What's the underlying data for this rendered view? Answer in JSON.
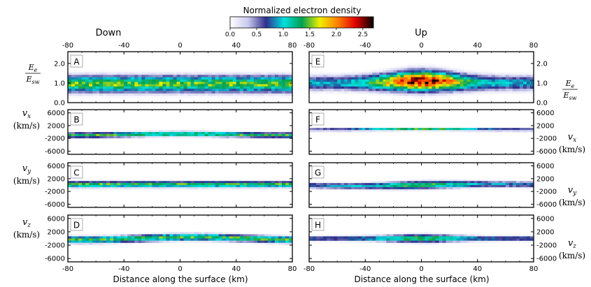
{
  "colorbar": {
    "title": "Normalized electron density",
    "ticks": [
      "0.0",
      "0.5",
      "1.0",
      "1.5",
      "2.0",
      "2.5"
    ],
    "range": [
      0,
      2.7
    ],
    "colors": [
      "#ffffff",
      "#c9c9ee",
      "#2f2f8c",
      "#00e0e0",
      "#00a050",
      "#f0f000",
      "#ff8000",
      "#e00000",
      "#000000"
    ]
  },
  "columns": [
    {
      "title": "Down",
      "xlabel": "Distance along the surface (km)"
    },
    {
      "title": "Up",
      "xlabel": "Distance along the surface (km)"
    }
  ],
  "x_ticks": [
    "-80",
    "-40",
    "0",
    "40",
    "80"
  ],
  "rows": [
    {
      "ylabel": "E_e / E_sw",
      "ylabel_num": "E",
      "ylabel_num_sub": "e",
      "ylabel_den": "E",
      "ylabel_den_sub": "sw",
      "ticks": [
        "0.0",
        "1.0",
        "2.0"
      ],
      "ticks_right": [
        "0.0",
        "1.0",
        "2.0"
      ]
    },
    {
      "ylabel": "v_x (km/s)",
      "ylabel_var": "v",
      "ylabel_sub": "x",
      "ylabel_unit": "(km/s)",
      "ticks": [
        "6000",
        "2000",
        "-2000",
        "-6000"
      ]
    },
    {
      "ylabel": "v_y (km/s)",
      "ylabel_var": "v",
      "ylabel_sub": "y",
      "ylabel_unit": "(km/s)",
      "ticks": [
        "6000",
        "2000",
        "-2000",
        "-6000"
      ]
    },
    {
      "ylabel": "v_z (km/s)",
      "ylabel_var": "v",
      "ylabel_sub": "z",
      "ylabel_unit": "(km/s)",
      "ticks": [
        "6000",
        "2000",
        "-2000",
        "-6000"
      ]
    }
  ],
  "chart_data": [
    {
      "panel": "A",
      "type": "heatmap",
      "column": "Down",
      "x_range": [
        -80,
        80
      ],
      "y_range": [
        0,
        2.6
      ],
      "ridge_y": 0.9,
      "peak_density": 1.6
    },
    {
      "panel": "B",
      "type": "heatmap",
      "column": "Down",
      "x_range": [
        -80,
        80
      ],
      "y_range": [
        -7000,
        7000
      ],
      "ridge_y": -500,
      "peak_density": 1.5
    },
    {
      "panel": "C",
      "type": "heatmap",
      "column": "Down",
      "x_range": [
        -80,
        80
      ],
      "y_range": [
        -7000,
        7000
      ],
      "ridge_y": 0,
      "peak_density": 1.5
    },
    {
      "panel": "D",
      "type": "heatmap",
      "column": "Down",
      "x_range": [
        -80,
        80
      ],
      "y_range": [
        -7000,
        7000
      ],
      "ridge_y": -500,
      "peak_density": 1.5
    },
    {
      "panel": "E",
      "type": "heatmap",
      "column": "Up",
      "x_range": [
        -80,
        80
      ],
      "y_range": [
        0,
        2.6
      ],
      "ridge_y": 0.9,
      "peak_density": 2.5
    },
    {
      "panel": "F",
      "type": "heatmap",
      "column": "Up",
      "x_range": [
        -80,
        80
      ],
      "y_range": [
        -7000,
        7000
      ],
      "ridge_y": 1000,
      "peak_density": 1.4
    },
    {
      "panel": "G",
      "type": "heatmap",
      "column": "Up",
      "x_range": [
        -80,
        80
      ],
      "y_range": [
        -7000,
        7000
      ],
      "ridge_y": 0,
      "peak_density": 1.3
    },
    {
      "panel": "H",
      "type": "heatmap",
      "column": "Up",
      "x_range": [
        -80,
        80
      ],
      "y_range": [
        -7000,
        7000
      ],
      "ridge_y": 0,
      "peak_density": 1.3
    }
  ]
}
